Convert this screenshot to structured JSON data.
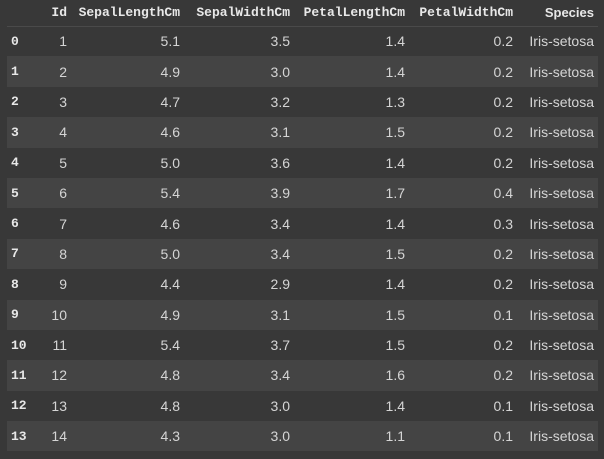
{
  "table": {
    "columns": [
      "",
      "Id",
      "SepalLengthCm",
      "SepalWidthCm",
      "PetalLengthCm",
      "PetalWidthCm",
      "Species"
    ],
    "rows": [
      [
        "0",
        "1",
        "5.1",
        "3.5",
        "1.4",
        "0.2",
        "Iris-setosa"
      ],
      [
        "1",
        "2",
        "4.9",
        "3.0",
        "1.4",
        "0.2",
        "Iris-setosa"
      ],
      [
        "2",
        "3",
        "4.7",
        "3.2",
        "1.3",
        "0.2",
        "Iris-setosa"
      ],
      [
        "3",
        "4",
        "4.6",
        "3.1",
        "1.5",
        "0.2",
        "Iris-setosa"
      ],
      [
        "4",
        "5",
        "5.0",
        "3.6",
        "1.4",
        "0.2",
        "Iris-setosa"
      ],
      [
        "5",
        "6",
        "5.4",
        "3.9",
        "1.7",
        "0.4",
        "Iris-setosa"
      ],
      [
        "6",
        "7",
        "4.6",
        "3.4",
        "1.4",
        "0.3",
        "Iris-setosa"
      ],
      [
        "7",
        "8",
        "5.0",
        "3.4",
        "1.5",
        "0.2",
        "Iris-setosa"
      ],
      [
        "8",
        "9",
        "4.4",
        "2.9",
        "1.4",
        "0.2",
        "Iris-setosa"
      ],
      [
        "9",
        "10",
        "4.9",
        "3.1",
        "1.5",
        "0.1",
        "Iris-setosa"
      ],
      [
        "10",
        "11",
        "5.4",
        "3.7",
        "1.5",
        "0.2",
        "Iris-setosa"
      ],
      [
        "11",
        "12",
        "4.8",
        "3.4",
        "1.6",
        "0.2",
        "Iris-setosa"
      ],
      [
        "12",
        "13",
        "4.8",
        "3.0",
        "1.4",
        "0.1",
        "Iris-setosa"
      ],
      [
        "13",
        "14",
        "4.3",
        "3.0",
        "1.1",
        "0.1",
        "Iris-setosa"
      ]
    ]
  },
  "colors": {
    "background": "#383838",
    "row_alt": "#444444",
    "text": "#d5d5d5",
    "header_text": "#e8e8e8"
  }
}
